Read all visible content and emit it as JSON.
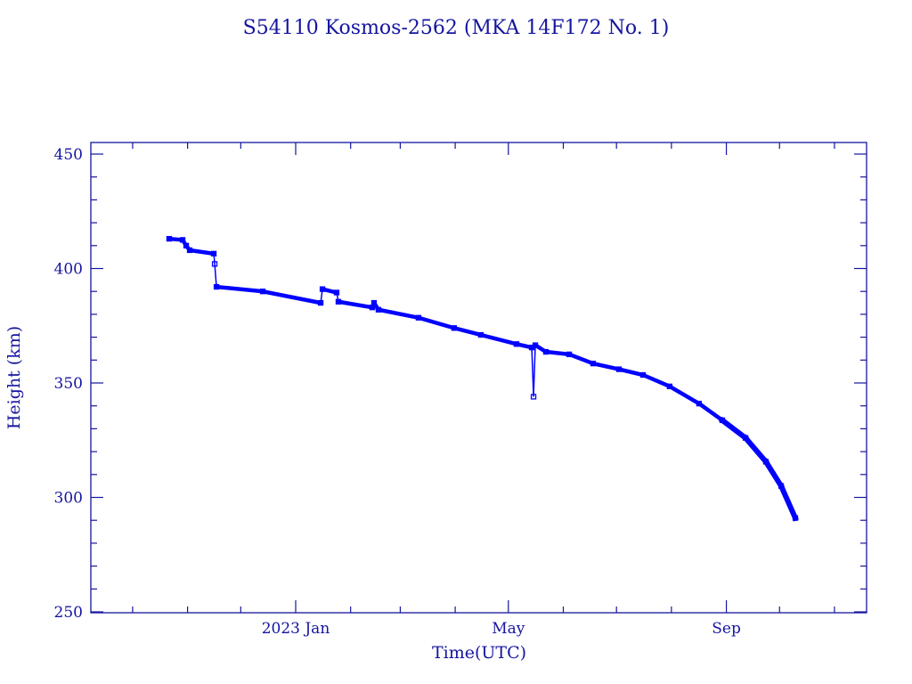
{
  "chart_data": {
    "type": "line",
    "title": "S54110 Kosmos-2562  (MKA 14F172 No. 1)",
    "xlabel": "Time(UTC)",
    "ylabel": "Height (km)",
    "ylim": [
      250,
      455
    ],
    "xlim_days_since_2023_01_01": [
      -116,
      322
    ],
    "x_ticks": [
      {
        "label": "2023 Jan",
        "day": 0
      },
      {
        "label": "May",
        "day": 120
      },
      {
        "label": "Sep",
        "day": 243
      }
    ],
    "x_minor_tick_days": [
      -92,
      -61,
      -31,
      0,
      31,
      59,
      90,
      120,
      151,
      181,
      212,
      243,
      273,
      304
    ],
    "y_ticks": [
      250,
      300,
      350,
      400,
      450
    ],
    "y_minor_step": 10,
    "grid": false,
    "colors": {
      "axis": "#1515a0",
      "series": "#0000ff"
    },
    "series": [
      {
        "name": "Height",
        "x_days_since_2023_01_01": [
          -71.4,
          -63.8,
          -61.8,
          -59.8,
          -46.2,
          -45.7,
          -44.7,
          -18.6,
          14.1,
          15.1,
          23.1,
          24.1,
          43.2,
          44.2,
          46.7,
          69.3,
          89.4,
          104.5,
          124.6,
          133.2,
          134.2,
          135.2,
          141.2,
          154.3,
          167.8,
          182.4,
          196.0,
          211.0,
          227.6,
          240.7,
          253.8,
          265.3,
          273.9,
          281.9
        ],
        "y_km": [
          413,
          412.5,
          410,
          408,
          406.5,
          402,
          392,
          390,
          385,
          391,
          389.5,
          385.5,
          383,
          385,
          382,
          378.5,
          374,
          371,
          367,
          365.5,
          344,
          366.5,
          363.6,
          362.5,
          358.5,
          356,
          353.5,
          348.5,
          341,
          333.7,
          326,
          315.6,
          305,
          291
        ]
      }
    ]
  }
}
